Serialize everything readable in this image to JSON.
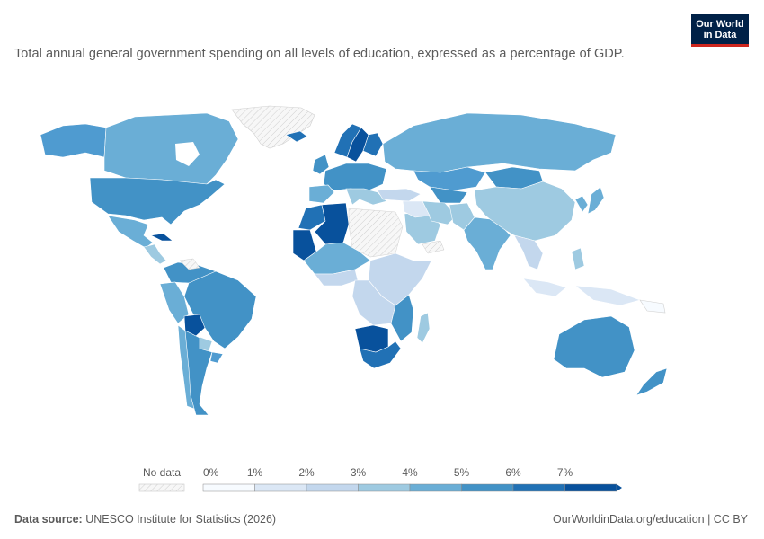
{
  "subtitle": "Total annual general government spending on all levels of education, expressed as a percentage of GDP.",
  "logo": {
    "line1": "Our World",
    "line2": "in Data"
  },
  "legend": {
    "no_data_label": "No data",
    "bins": [
      "0%",
      "1%",
      "2%",
      "3%",
      "4%",
      "5%",
      "6%",
      "7%"
    ],
    "colors": [
      "#f7fbff",
      "#dbe7f5",
      "#c3d7ed",
      "#9ecae1",
      "#6aaed6",
      "#4292c6",
      "#2171b5",
      "#08519c"
    ]
  },
  "footer": {
    "source_label": "Data source:",
    "source_text": "UNESCO Institute for Statistics (2026)",
    "link_text": "OurWorldinData.org/education | CC BY"
  },
  "colors": {
    "no_data_fill": "#f2f2f2",
    "no_data_stroke": "#cfcfcf",
    "border": "#ffffff",
    "logo_bg": "#002147",
    "logo_accent": "#ce261e"
  }
}
